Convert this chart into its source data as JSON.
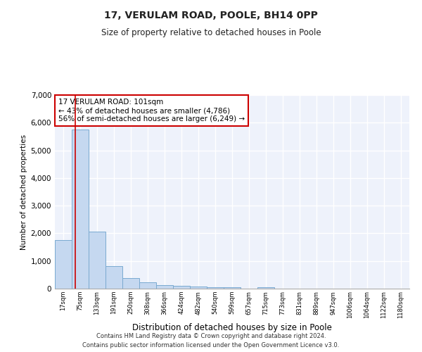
{
  "title": "17, VERULAM ROAD, POOLE, BH14 0PP",
  "subtitle": "Size of property relative to detached houses in Poole",
  "xlabel": "Distribution of detached houses by size in Poole",
  "ylabel": "Number of detached properties",
  "categories": [
    "17sqm",
    "75sqm",
    "133sqm",
    "191sqm",
    "250sqm",
    "308sqm",
    "366sqm",
    "424sqm",
    "482sqm",
    "540sqm",
    "599sqm",
    "657sqm",
    "715sqm",
    "773sqm",
    "831sqm",
    "889sqm",
    "947sqm",
    "1006sqm",
    "1064sqm",
    "1122sqm",
    "1180sqm"
  ],
  "values": [
    1750,
    5750,
    2050,
    820,
    380,
    240,
    120,
    100,
    70,
    55,
    45,
    0,
    50,
    0,
    0,
    0,
    0,
    0,
    0,
    0,
    0
  ],
  "bar_color": "#c5d8f0",
  "bar_edgecolor": "#7aaad0",
  "vline_color": "#cc0000",
  "vline_x": 1.0,
  "annotation_text": "17 VERULAM ROAD: 101sqm\n← 43% of detached houses are smaller (4,786)\n56% of semi-detached houses are larger (6,249) →",
  "annotation_box_color": "#ffffff",
  "annotation_box_edgecolor": "#cc0000",
  "footer1": "Contains HM Land Registry data © Crown copyright and database right 2024.",
  "footer2": "Contains public sector information licensed under the Open Government Licence v3.0.",
  "ylim": [
    0,
    7000
  ],
  "yticks": [
    0,
    1000,
    2000,
    3000,
    4000,
    5000,
    6000,
    7000
  ],
  "background_color": "#eef2fb",
  "grid_color": "#ffffff"
}
